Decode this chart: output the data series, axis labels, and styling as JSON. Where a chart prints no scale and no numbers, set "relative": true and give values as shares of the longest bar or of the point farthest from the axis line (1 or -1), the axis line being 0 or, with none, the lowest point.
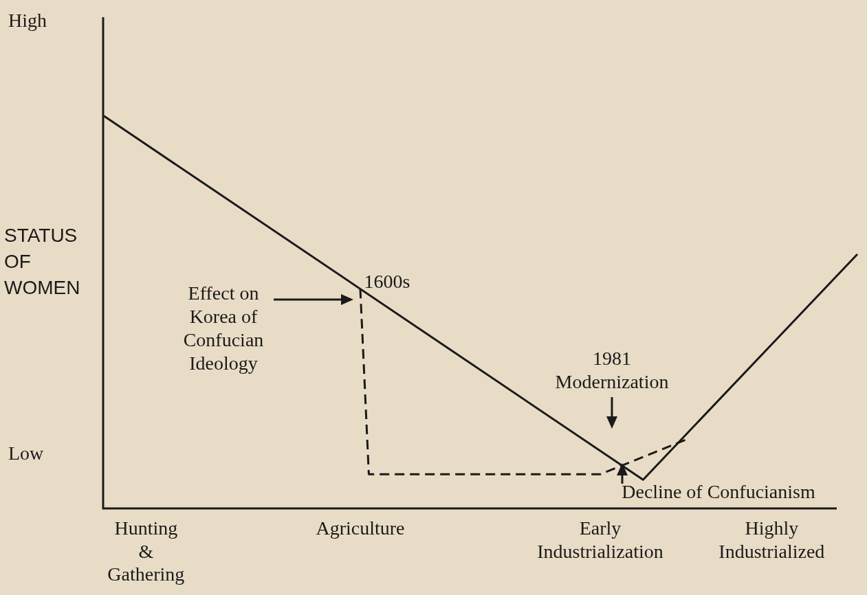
{
  "chart_data": {
    "type": "line",
    "relative": true,
    "ylabel": "STATUS OF WOMEN",
    "categories": [
      null,
      null,
      null,
      null,
      null,
      "Hunting\n&\nGathering",
      null,
      null,
      null,
      null,
      null,
      null,
      null,
      null,
      null,
      null,
      null,
      null,
      null,
      null,
      null,
      null,
      null,
      null,
      null,
      null,
      null,
      null,
      null,
      null,
      "Agriculture",
      null,
      null,
      null,
      null,
      null,
      null,
      null,
      null,
      null,
      null,
      null,
      null,
      null,
      null,
      null,
      null,
      null,
      null,
      null,
      null,
      null,
      null,
      null,
      null,
      null,
      null,
      null,
      "Early\nIndustrialization",
      null,
      null,
      null,
      null,
      null,
      null,
      null,
      null,
      null,
      null,
      null,
      null,
      null,
      null,
      null,
      null,
      null,
      null,
      null,
      "Highly\nIndustrialized",
      null,
      null,
      null,
      null,
      null,
      null,
      null,
      null,
      null,
      null
    ],
    "series": [
      {
        "color": "#1a1a1a",
        "line_style": "solid",
        "values": [
          1,
          null,
          null,
          null,
          null,
          null,
          null,
          null,
          null,
          null,
          null,
          null,
          null,
          null,
          null,
          null,
          null,
          null,
          null,
          null,
          null,
          null,
          null,
          null,
          null,
          null,
          null,
          null,
          null,
          null,
          null,
          null,
          null,
          null,
          null,
          null,
          null,
          null,
          null,
          null,
          null,
          null,
          null,
          null,
          null,
          null,
          null,
          null,
          null,
          null,
          null,
          null,
          null,
          null,
          null,
          null,
          null,
          null,
          null,
          null,
          null,
          null,
          null,
          0.073,
          null,
          null,
          null,
          null,
          null,
          null,
          null,
          null,
          null,
          null,
          null,
          null,
          null,
          null,
          null,
          null,
          null,
          null,
          null,
          null,
          null,
          null,
          null,
          null,
          0.647
        ]
      },
      {
        "color": "#1a1a1a",
        "line_style": "dashed",
        "values": [
          null,
          null,
          null,
          null,
          null,
          null,
          null,
          null,
          null,
          null,
          null,
          null,
          null,
          null,
          null,
          null,
          null,
          null,
          null,
          null,
          null,
          null,
          null,
          null,
          null,
          null,
          null,
          null,
          null,
          null,
          0.559,
          0.087,
          null,
          null,
          null,
          null,
          null,
          null,
          null,
          null,
          null,
          null,
          null,
          null,
          null,
          null,
          null,
          null,
          null,
          null,
          null,
          null,
          null,
          null,
          null,
          null,
          null,
          null,
          0.087,
          null,
          null,
          null,
          null,
          null,
          null,
          null,
          null,
          null,
          0.175,
          null,
          null,
          null,
          null,
          null,
          null,
          null,
          null,
          null,
          null,
          null,
          null,
          null,
          null,
          null,
          null,
          null,
          null,
          null,
          null
        ]
      }
    ],
    "annotations": [
      "High",
      "Low",
      "Effect on\nKorea of\nConfucian\nIdeology",
      "1600s",
      "1981\nModernization",
      "Decline of Confucianism"
    ],
    "grid": false,
    "legend": false,
    "marker": "none"
  }
}
